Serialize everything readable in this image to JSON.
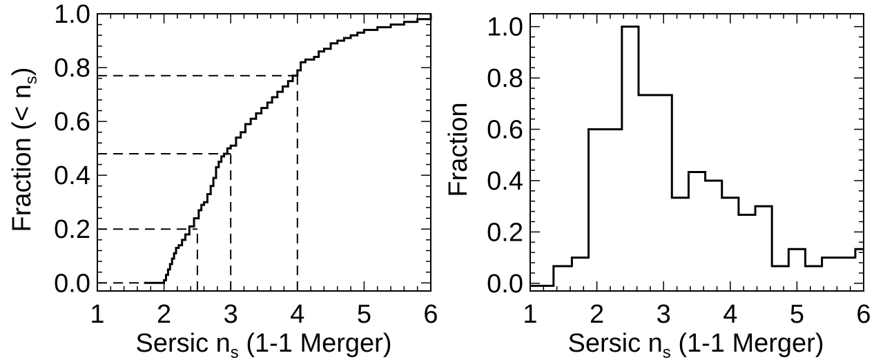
{
  "chart_data": [
    {
      "type": "line",
      "subtype": "cumulative-step",
      "xlabel_main": "Sersic n",
      "xlabel_sub": "s",
      "xlabel_tail": " (1-1 Merger)",
      "ylabel_main": "Fraction (< n",
      "ylabel_sub": "s",
      "ylabel_tail": ")",
      "xlim": [
        1,
        6
      ],
      "ylim": [
        -0.03,
        1.0
      ],
      "xticks": [
        1,
        2,
        3,
        4,
        5,
        6
      ],
      "xtick_labels": [
        "1",
        "2",
        "3",
        "4",
        "5",
        "6"
      ],
      "yticks": [
        0.0,
        0.2,
        0.4,
        0.6,
        0.8,
        1.0
      ],
      "ytick_labels": [
        "0.0",
        "0.2",
        "0.4",
        "0.6",
        "0.8",
        "1.0"
      ],
      "x": [
        1.7,
        1.95,
        2.0,
        2.03,
        2.06,
        2.09,
        2.12,
        2.15,
        2.18,
        2.22,
        2.27,
        2.32,
        2.38,
        2.45,
        2.52,
        2.56,
        2.6,
        2.65,
        2.7,
        2.74,
        2.78,
        2.82,
        2.86,
        2.9,
        2.95,
        3.0,
        3.08,
        3.15,
        3.22,
        3.3,
        3.38,
        3.46,
        3.55,
        3.62,
        3.7,
        3.78,
        3.86,
        3.93,
        4.0,
        4.05,
        4.12,
        4.25,
        4.32,
        4.4,
        4.5,
        4.6,
        4.7,
        4.8,
        4.9,
        5.0,
        5.2,
        5.4,
        5.6,
        5.8,
        6.0
      ],
      "y": [
        0.0,
        0.0,
        0.01,
        0.03,
        0.05,
        0.07,
        0.09,
        0.11,
        0.13,
        0.14,
        0.16,
        0.18,
        0.21,
        0.24,
        0.27,
        0.29,
        0.3,
        0.33,
        0.36,
        0.39,
        0.43,
        0.45,
        0.47,
        0.48,
        0.5,
        0.51,
        0.54,
        0.56,
        0.59,
        0.61,
        0.63,
        0.65,
        0.67,
        0.69,
        0.71,
        0.73,
        0.75,
        0.77,
        0.79,
        0.82,
        0.83,
        0.84,
        0.86,
        0.87,
        0.89,
        0.9,
        0.91,
        0.92,
        0.93,
        0.94,
        0.95,
        0.96,
        0.97,
        0.98,
        1.0
      ],
      "reference_lines": [
        {
          "x": 2.5,
          "y": 0.2
        },
        {
          "x": 3.0,
          "y": 0.48
        },
        {
          "x": 4.0,
          "y": 0.77
        }
      ],
      "baseline_dash_y": 0.0,
      "grid": false
    },
    {
      "type": "histogram",
      "xlabel_main": "Sersic n",
      "xlabel_sub": "s",
      "xlabel_tail": " (1-1 Merger)",
      "ylabel": "Fraction",
      "xlim": [
        1,
        6
      ],
      "ylim": [
        -0.03,
        1.05
      ],
      "xticks": [
        1,
        2,
        3,
        4,
        5,
        6
      ],
      "xtick_labels": [
        "1",
        "2",
        "3",
        "4",
        "5",
        "6"
      ],
      "yticks": [
        0.0,
        0.2,
        0.4,
        0.6,
        0.8,
        1.0
      ],
      "ytick_labels": [
        "0.0",
        "0.2",
        "0.4",
        "0.6",
        "0.8",
        "1.0"
      ],
      "bin_edges": [
        1.0,
        1.35,
        1.625,
        1.875,
        2.375,
        2.625,
        3.125,
        3.375,
        3.625,
        3.875,
        4.125,
        4.375,
        4.625,
        4.875,
        5.125,
        5.375,
        5.875,
        6.0
      ],
      "values": [
        -0.01,
        0.0667,
        0.1,
        0.6,
        1.0,
        0.7333,
        0.3333,
        0.4333,
        0.4,
        0.3333,
        0.2667,
        0.3,
        0.0667,
        0.1333,
        0.0667,
        0.1,
        0.1333
      ],
      "grid": false
    }
  ]
}
